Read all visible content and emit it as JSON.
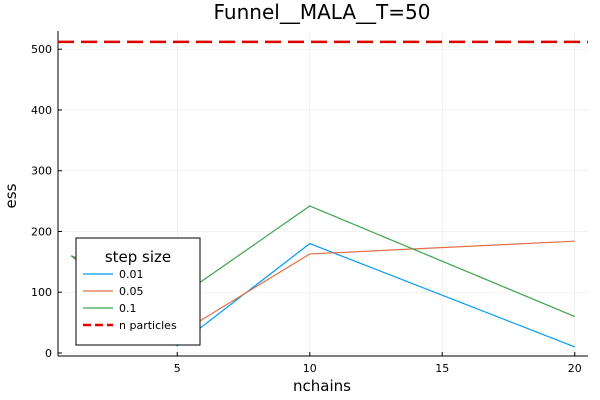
{
  "chart_data": {
    "type": "line",
    "title": "Funnel__MALA__T=50",
    "xlabel": "nchains",
    "ylabel": "ess",
    "xlim": [
      0.5,
      20.5
    ],
    "ylim": [
      -5,
      530
    ],
    "xticks": [
      5,
      10,
      15,
      20
    ],
    "yticks": [
      0,
      100,
      200,
      300,
      400,
      500
    ],
    "grid": true,
    "x": [
      1,
      5,
      10,
      20
    ],
    "series": [
      {
        "name": "0.01",
        "color": "#009AFA",
        "values": [
          160,
          12,
          180,
          10
        ]
      },
      {
        "name": "0.05",
        "color": "#E26F46",
        "values": [
          160,
          30,
          163,
          184
        ]
      },
      {
        "name": "0.1",
        "color": "#3EA44E",
        "values": [
          160,
          90,
          242,
          60
        ]
      }
    ],
    "hlines": [
      {
        "name": "n particles",
        "color": "#E00000",
        "value": 512,
        "style": "dashed"
      }
    ],
    "legend": {
      "title": "step size",
      "position": "bottom-left"
    }
  }
}
